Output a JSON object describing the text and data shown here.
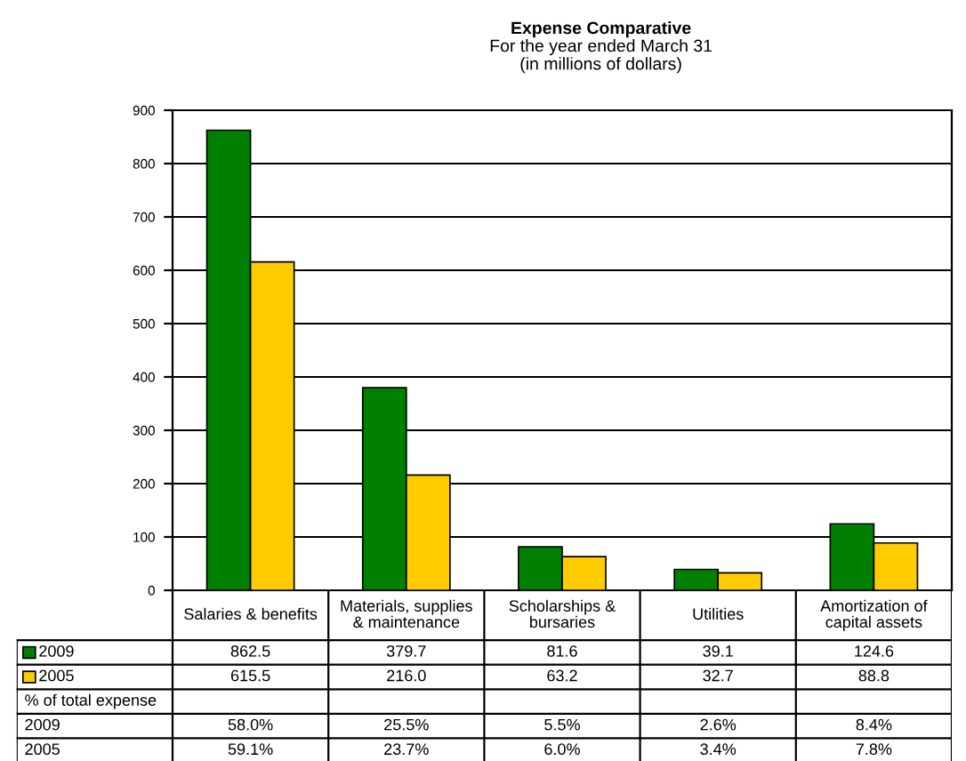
{
  "chart_data": {
    "type": "bar",
    "title": "Expense Comparative",
    "subtitle": "For the year ended March 31\n(in millions of dollars)",
    "categories": [
      "Salaries & benefits",
      "Materials, supplies\n& maintenance",
      "Scholarships &\nbursaries",
      "Utilities",
      "Amortization of\ncapital assets"
    ],
    "series": [
      {
        "name": "2009",
        "color": "#007f00",
        "values": [
          862.5,
          379.7,
          81.6,
          39.1,
          124.6
        ],
        "value_labels": [
          "862.5",
          "379.7",
          "81.6",
          "39.1",
          "124.6"
        ]
      },
      {
        "name": "2005",
        "color": "#ffcc00",
        "values": [
          615.5,
          216.0,
          63.2,
          32.7,
          88.8
        ],
        "value_labels": [
          "615.5",
          "216.0",
          "63.2",
          "32.7",
          "88.8"
        ]
      }
    ],
    "ylim": [
      0,
      900
    ],
    "yticks": [
      0,
      100,
      200,
      300,
      400,
      500,
      600,
      700,
      800,
      900
    ],
    "grid": "y",
    "legend": "bottom left",
    "annotations": [
      "% of total expense",
      "2009",
      "58.0%",
      "25.5%",
      "5.5%",
      "2.6%",
      "8.4%",
      "2005",
      "59.1%",
      "23.7%",
      "6.0%",
      "3.4%",
      "7.8%"
    ]
  }
}
